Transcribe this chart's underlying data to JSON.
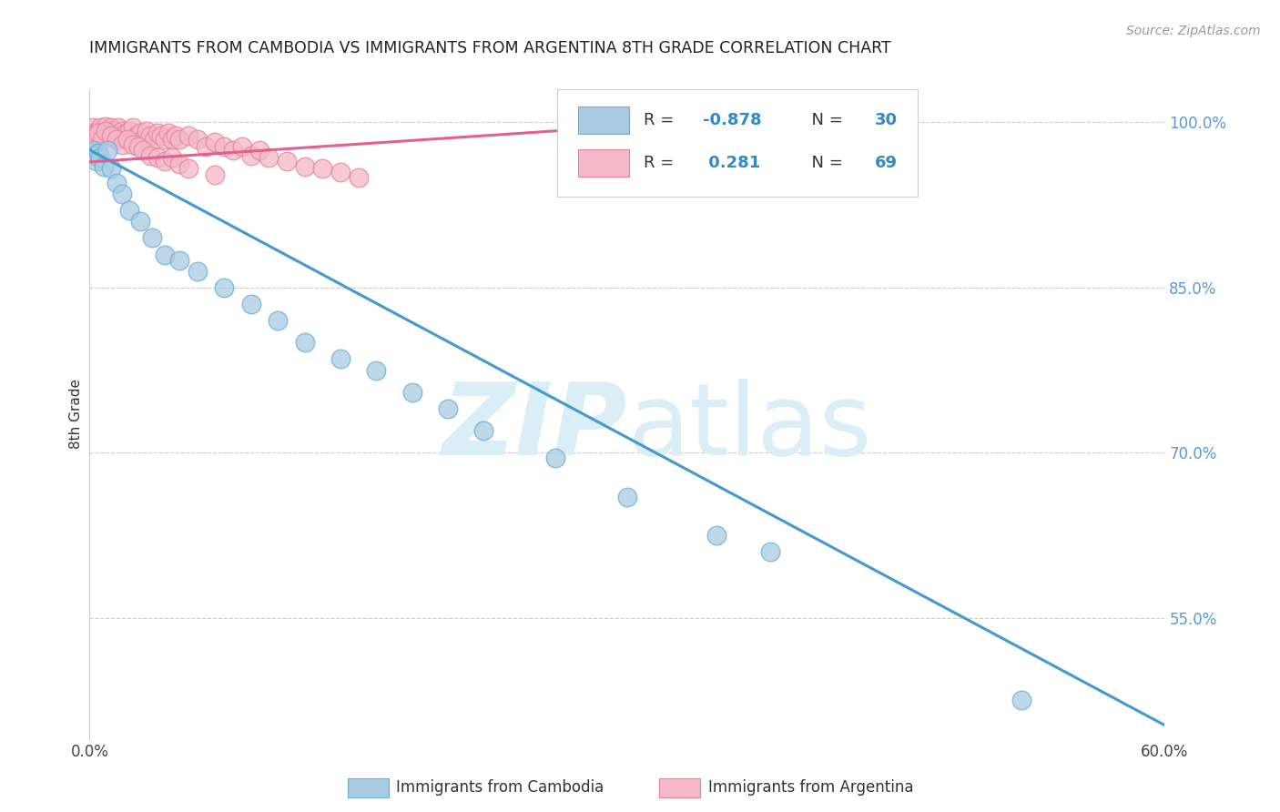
{
  "title": "IMMIGRANTS FROM CAMBODIA VS IMMIGRANTS FROM ARGENTINA 8TH GRADE CORRELATION CHART",
  "source": "Source: ZipAtlas.com",
  "ylabel": "8th Grade",
  "xlim": [
    0.0,
    0.6
  ],
  "ylim": [
    0.44,
    1.03
  ],
  "right_yticks": [
    1.0,
    0.85,
    0.7,
    0.55
  ],
  "right_yticklabels": [
    "100.0%",
    "85.0%",
    "70.0%",
    "55.0%"
  ],
  "blue_color": "#a8cce4",
  "pink_color": "#f4b8c8",
  "blue_edge_color": "#6aadd5",
  "pink_edge_color": "#e8829a",
  "blue_line_color": "#4499d0",
  "pink_line_color": "#e06090",
  "watermark_color": "#daeef8",
  "blue_scatter_x": [
    0.002,
    0.003,
    0.004,
    0.005,
    0.006,
    0.008,
    0.01,
    0.012,
    0.015,
    0.018,
    0.022,
    0.028,
    0.035,
    0.042,
    0.05,
    0.06,
    0.075,
    0.09,
    0.105,
    0.12,
    0.14,
    0.16,
    0.18,
    0.2,
    0.22,
    0.26,
    0.3,
    0.35,
    0.38,
    0.52
  ],
  "blue_scatter_y": [
    0.975,
    0.97,
    0.965,
    0.972,
    0.968,
    0.96,
    0.975,
    0.958,
    0.945,
    0.935,
    0.92,
    0.91,
    0.895,
    0.88,
    0.875,
    0.865,
    0.85,
    0.835,
    0.82,
    0.8,
    0.785,
    0.775,
    0.755,
    0.74,
    0.72,
    0.695,
    0.66,
    0.625,
    0.61,
    0.475
  ],
  "pink_scatter_x": [
    0.001,
    0.002,
    0.003,
    0.004,
    0.005,
    0.006,
    0.007,
    0.008,
    0.009,
    0.01,
    0.011,
    0.012,
    0.013,
    0.014,
    0.015,
    0.016,
    0.017,
    0.018,
    0.019,
    0.02,
    0.022,
    0.024,
    0.026,
    0.028,
    0.03,
    0.032,
    0.034,
    0.036,
    0.038,
    0.04,
    0.042,
    0.044,
    0.046,
    0.048,
    0.05,
    0.055,
    0.06,
    0.065,
    0.07,
    0.075,
    0.08,
    0.085,
    0.09,
    0.095,
    0.1,
    0.11,
    0.12,
    0.13,
    0.14,
    0.15,
    0.003,
    0.005,
    0.007,
    0.009,
    0.012,
    0.015,
    0.018,
    0.021,
    0.024,
    0.027,
    0.03,
    0.034,
    0.038,
    0.042,
    0.046,
    0.05,
    0.055,
    0.07,
    0.3
  ],
  "pink_scatter_y": [
    0.99,
    0.995,
    0.99,
    0.985,
    0.992,
    0.995,
    0.988,
    0.992,
    0.996,
    0.988,
    0.992,
    0.995,
    0.988,
    0.992,
    0.99,
    0.995,
    0.988,
    0.992,
    0.985,
    0.99,
    0.992,
    0.995,
    0.988,
    0.99,
    0.985,
    0.992,
    0.988,
    0.985,
    0.99,
    0.988,
    0.985,
    0.99,
    0.985,
    0.988,
    0.985,
    0.988,
    0.985,
    0.978,
    0.982,
    0.978,
    0.975,
    0.978,
    0.97,
    0.975,
    0.968,
    0.965,
    0.96,
    0.958,
    0.955,
    0.95,
    0.988,
    0.99,
    0.985,
    0.992,
    0.988,
    0.985,
    0.98,
    0.985,
    0.98,
    0.978,
    0.975,
    0.97,
    0.968,
    0.965,
    0.968,
    0.962,
    0.958,
    0.952,
    0.972
  ],
  "blue_line_x": [
    0.0,
    0.62
  ],
  "blue_line_y": [
    0.975,
    0.435
  ],
  "pink_line_x": [
    0.0,
    0.35
  ],
  "pink_line_y": [
    0.964,
    1.002
  ]
}
